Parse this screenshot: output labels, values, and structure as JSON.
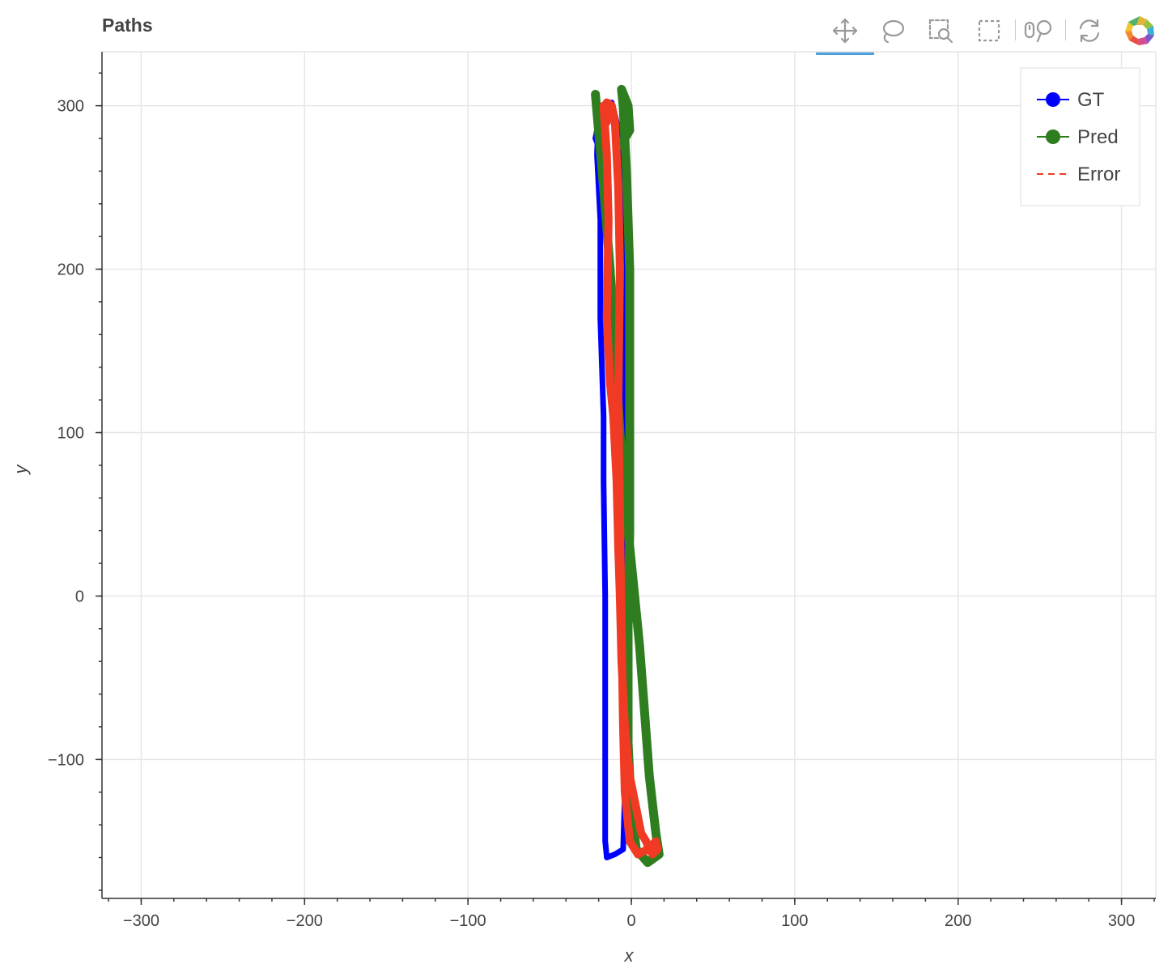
{
  "title": "Paths",
  "toolbar": {
    "tools": [
      {
        "name": "pan-tool",
        "icon": "pan-icon",
        "active": true
      },
      {
        "name": "lasso-select-tool",
        "icon": "lasso-icon",
        "active": false
      },
      {
        "name": "box-zoom-tool",
        "icon": "box-zoom-icon",
        "active": false
      },
      {
        "name": "box-select-tool",
        "icon": "box-select-icon",
        "active": false
      },
      {
        "name": "wheel-zoom-tool",
        "icon": "wheel-zoom-icon",
        "active": false
      },
      {
        "name": "reset-tool",
        "icon": "reset-icon",
        "active": false
      },
      {
        "name": "bokeh-logo",
        "icon": "bokeh-logo-icon",
        "active": false
      }
    ]
  },
  "chart_data": {
    "type": "line",
    "xlabel": "x",
    "ylabel": "y",
    "xlim": [
      -324,
      321
    ],
    "ylim": [
      -185,
      333
    ],
    "x_ticks": [
      -300,
      -200,
      -100,
      0,
      100,
      200,
      300
    ],
    "x_tick_labels": [
      "−300",
      "−200",
      "−100",
      "0",
      "100",
      "200",
      "300"
    ],
    "y_ticks": [
      -100,
      0,
      100,
      200,
      300
    ],
    "y_tick_labels": [
      "−100",
      "0",
      "100",
      "200",
      "300"
    ],
    "grid": true,
    "legend_position": "top-right",
    "colors": {
      "gt": "#0000ff",
      "pred": "#2e7d1f",
      "error": "#f03a24",
      "grid": "#e6e6e6"
    },
    "series": [
      {
        "name": "GT",
        "x": [
          -20,
          -21,
          -19,
          -19,
          -18,
          -17,
          -17,
          -16,
          -16,
          -16,
          -15,
          -10,
          -5,
          -4,
          -3,
          -3,
          -4,
          -4,
          -4,
          -4,
          -6,
          -9,
          -12,
          -13,
          -14,
          -17,
          -19,
          -21,
          -22,
          -20
        ],
        "y": [
          300,
          270,
          230,
          170,
          140,
          110,
          70,
          0,
          -100,
          -150,
          -160,
          -158,
          -155,
          -120,
          -80,
          -20,
          30,
          90,
          150,
          200,
          250,
          290,
          302,
          301,
          300,
          295,
          290,
          285,
          280,
          275
        ]
      },
      {
        "name": "Pred",
        "x": [
          -22,
          -17,
          -13,
          -10,
          -7,
          -3,
          2,
          5,
          8,
          11,
          15,
          17,
          10,
          3,
          0,
          -2,
          -2,
          -1,
          -1,
          -1,
          -3,
          -5,
          -6,
          -2,
          -1,
          -4,
          -8
        ],
        "y": [
          307,
          250,
          200,
          150,
          100,
          50,
          0,
          -30,
          -70,
          -110,
          -145,
          -158,
          -163,
          -155,
          -130,
          -90,
          -20,
          40,
          100,
          200,
          260,
          300,
          310,
          300,
          285,
          280,
          275
        ]
      },
      {
        "name": "Error",
        "x": [
          -17,
          -15,
          -14,
          -15,
          -13,
          -11,
          -9,
          -8,
          -7,
          -6,
          -4,
          -1,
          3,
          6,
          9,
          11,
          13,
          16,
          15,
          10,
          4,
          -1,
          -4,
          -5,
          -6,
          -7,
          -8,
          -7,
          -8,
          -10,
          -12,
          -15,
          -16,
          -15
        ],
        "y": [
          300,
          270,
          230,
          170,
          130,
          110,
          70,
          30,
          0,
          -40,
          -80,
          -110,
          -130,
          -145,
          -150,
          -155,
          -158,
          -155,
          -150,
          -155,
          -158,
          -150,
          -120,
          -80,
          -20,
          50,
          120,
          200,
          250,
          290,
          300,
          302,
          300,
          290
        ]
      }
    ]
  }
}
